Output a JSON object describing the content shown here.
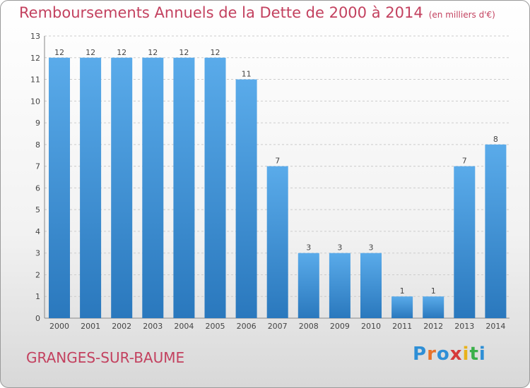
{
  "title": "Remboursements Annuels de la Dette de 2000 à 2014",
  "subtitle": "(en milliers d'€)",
  "commune": "GRANGES-SUR-BAUME",
  "logo": {
    "letters": [
      {
        "ch": "P",
        "color": "#2e8fd6"
      },
      {
        "ch": "r",
        "color": "#e8722a"
      },
      {
        "ch": "o",
        "color": "#2e8fd6"
      },
      {
        "ch": "x",
        "color": "#d63a3a"
      },
      {
        "ch": "i",
        "color": "#e8b21a"
      },
      {
        "ch": "t",
        "color": "#3bb04a"
      },
      {
        "ch": "i",
        "color": "#2e8fd6"
      }
    ]
  },
  "colors": {
    "bar_light": "#5aabea",
    "bar_dark": "#2a78bd",
    "title": "#c3415f",
    "text": "#444444"
  },
  "chart_data": {
    "type": "bar",
    "title": "Remboursements Annuels de la Dette de 2000 à 2014",
    "subtitle": "(en milliers d'€)",
    "categories": [
      "2000",
      "2001",
      "2002",
      "2003",
      "2004",
      "2005",
      "2006",
      "2007",
      "2008",
      "2009",
      "2010",
      "2011",
      "2012",
      "2013",
      "2014"
    ],
    "values": [
      12,
      12,
      12,
      12,
      12,
      12,
      11,
      7,
      3,
      3,
      3,
      1,
      1,
      7,
      8
    ],
    "data_labels": [
      "12",
      "12",
      "12",
      "12",
      "12",
      "12",
      "11",
      "7",
      "3",
      "3",
      "3",
      "1",
      "1",
      "7",
      "8"
    ],
    "yticks": [
      "0",
      "1",
      "2",
      "3",
      "4",
      "5",
      "6",
      "7",
      "8",
      "9",
      "10",
      "11",
      "12",
      "13"
    ],
    "ylim": [
      0,
      13
    ],
    "grid": true,
    "xlabel": "",
    "ylabel": ""
  }
}
